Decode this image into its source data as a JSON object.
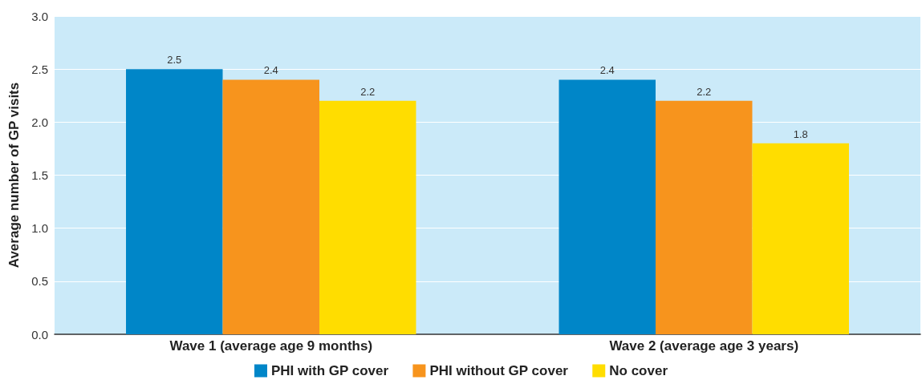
{
  "chart_data": {
    "type": "bar",
    "ylabel": "Average number of GP visits",
    "categories": [
      "Wave 1 (average age 9 months)",
      "Wave 2 (average age 3 years)"
    ],
    "series": [
      {
        "name": "PHI with GP cover",
        "color": "#0086c8",
        "values": [
          2.5,
          2.4
        ]
      },
      {
        "name": "PHI without GP cover",
        "color": "#f7941d",
        "values": [
          2.4,
          2.2
        ]
      },
      {
        "name": "No cover",
        "color": "#ffdd00",
        "values": [
          2.2,
          1.8
        ]
      }
    ],
    "ylim": [
      0,
      3
    ],
    "yticks": [
      {
        "value": 0,
        "label": "0.0"
      },
      {
        "value": 0.5,
        "label": "0.5"
      },
      {
        "value": 1,
        "label": "1.0"
      },
      {
        "value": 1.5,
        "label": "1.5"
      },
      {
        "value": 2,
        "label": "2.0"
      },
      {
        "value": 2.5,
        "label": "2.5"
      },
      {
        "value": 3,
        "label": "3.0"
      }
    ],
    "grid": true,
    "legend": "bottom",
    "data_labels": true
  }
}
